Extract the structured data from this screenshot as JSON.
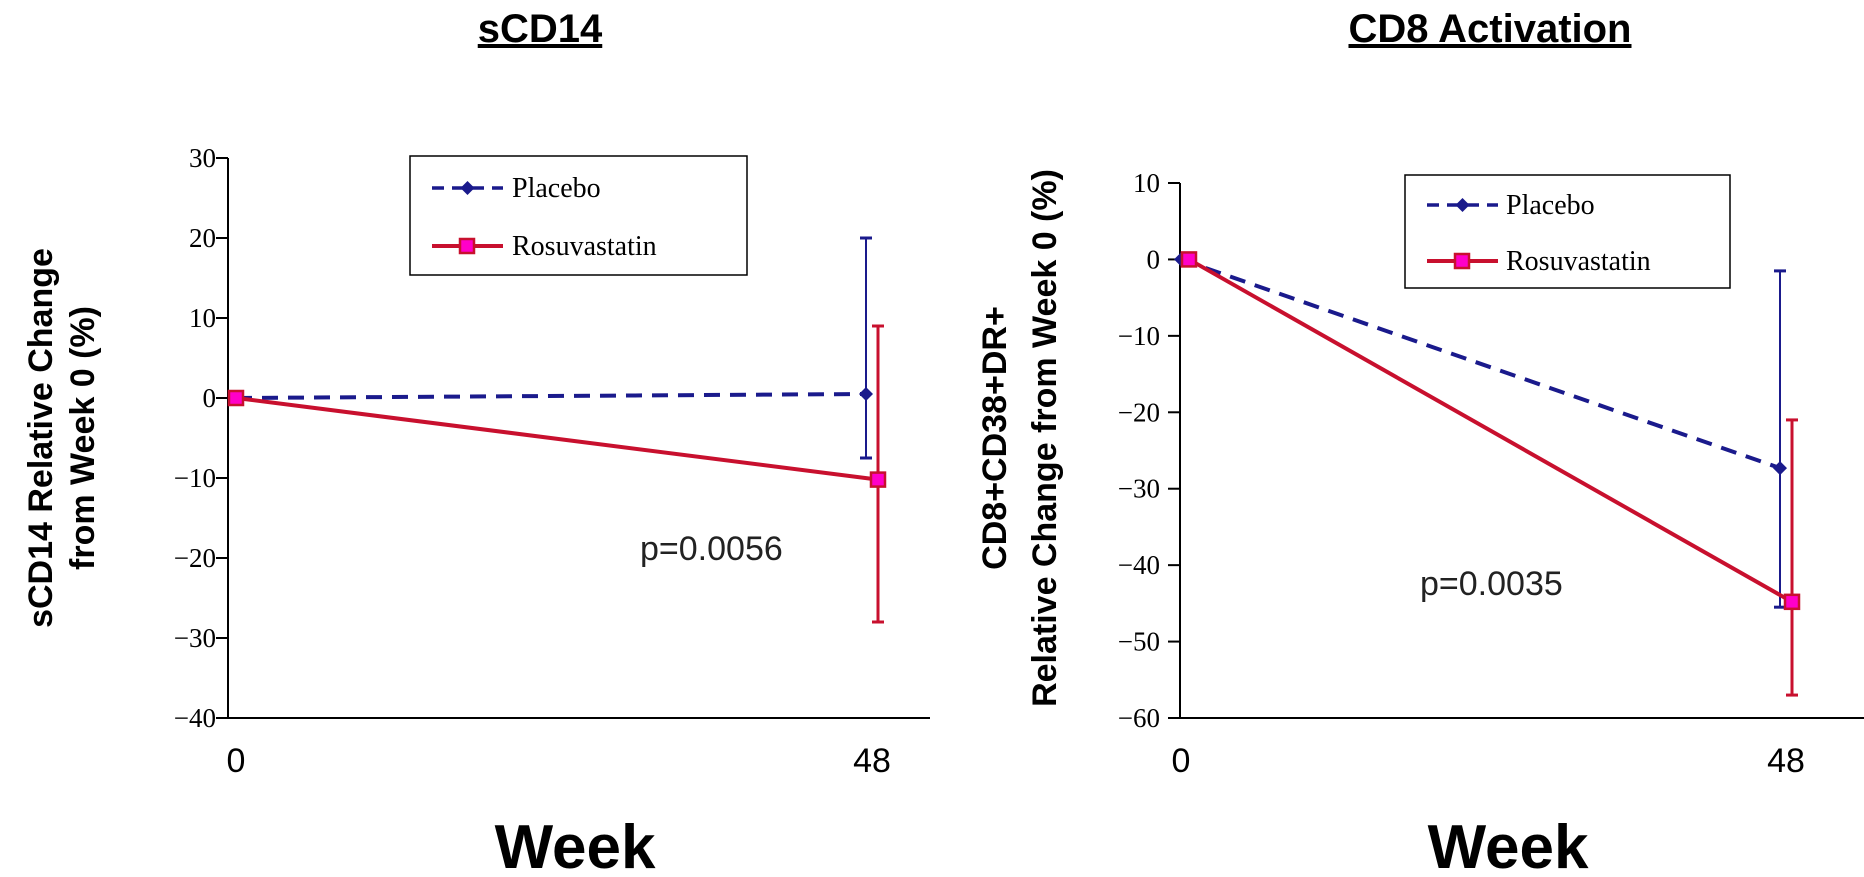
{
  "colors": {
    "placebo": "#1a1a8c",
    "rosuvastatin": "#c8102e",
    "rosuvastatin_marker_fill": "#ff00c8",
    "axis": "#000000",
    "background": "#ffffff"
  },
  "chart_data": [
    {
      "type": "line",
      "title": "sCD14",
      "xlabel": "Week",
      "ylabel_lines": [
        "sCD14 Relative Change",
        "from Week 0 (%)"
      ],
      "x": [
        0,
        48
      ],
      "x_tick_labels": [
        "0",
        "48"
      ],
      "ylim": [
        -40,
        30
      ],
      "y_ticks": [
        30,
        20,
        10,
        0,
        -10,
        -20,
        -30,
        -40
      ],
      "y_tick_labels": [
        "30",
        "20",
        "10",
        "0",
        "−10",
        "−20",
        "−30",
        "−40"
      ],
      "legend": {
        "placement": "top-center",
        "entries": [
          "Placebo",
          "Rosuvastatin"
        ]
      },
      "annotation": "p=0.0056",
      "series": [
        {
          "name": "Placebo",
          "values": [
            0,
            0.5
          ],
          "error_upper": [
            null,
            20
          ],
          "error_lower": [
            null,
            -7.5
          ],
          "line_style": "dashed",
          "marker": "diamond"
        },
        {
          "name": "Rosuvastatin",
          "values": [
            0,
            -10.2
          ],
          "error_upper": [
            null,
            9
          ],
          "error_lower": [
            null,
            -28
          ],
          "line_style": "solid",
          "marker": "square"
        }
      ]
    },
    {
      "type": "line",
      "title": "CD8 Activation",
      "xlabel": "Week",
      "ylabel_lines": [
        "CD8+CD38+DR+",
        "Relative Change from Week 0 (%)"
      ],
      "x": [
        0,
        48
      ],
      "x_tick_labels": [
        "0",
        "48"
      ],
      "ylim": [
        -60,
        10
      ],
      "y_ticks": [
        10,
        0,
        -10,
        -20,
        -30,
        -40,
        -50,
        -60
      ],
      "y_tick_labels": [
        "10",
        "0",
        "−10",
        "−20",
        "−30",
        "−40",
        "−50",
        "−60"
      ],
      "legend": {
        "placement": "top-center",
        "entries": [
          "Placebo",
          "Rosuvastatin"
        ]
      },
      "annotation": "p=0.0035",
      "series": [
        {
          "name": "Placebo",
          "values": [
            0,
            -27.3
          ],
          "error_upper": [
            null,
            -1.5
          ],
          "error_lower": [
            null,
            -45.5
          ],
          "line_style": "dashed",
          "marker": "diamond"
        },
        {
          "name": "Rosuvastatin",
          "values": [
            0,
            -44.8
          ],
          "error_upper": [
            null,
            -21
          ],
          "error_lower": [
            null,
            -57
          ],
          "line_style": "solid",
          "marker": "square"
        }
      ]
    }
  ]
}
